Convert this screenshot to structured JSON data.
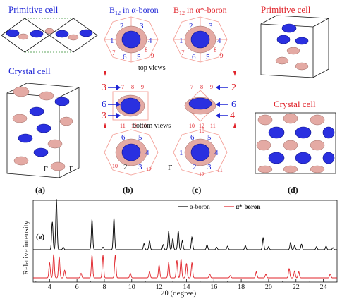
{
  "panel_a": {
    "title_primitive": "Primitive cell",
    "title_crystal": "Crystal cell",
    "gamma_left": "Γ",
    "gamma_right": "Γ",
    "label": "(a)"
  },
  "panel_b": {
    "title_prefix": "B",
    "title_sub": "12",
    "title_suffix": " in α-boron",
    "top_numbers": [
      "1",
      "2",
      "3",
      "4",
      "5",
      "6",
      "7",
      "8",
      "9"
    ],
    "side_numbers": [
      "7",
      "8",
      "9",
      "11",
      "12",
      "10"
    ],
    "bottom_numbers": [
      "6",
      "5",
      "4",
      "2",
      "3",
      "10",
      "12"
    ],
    "label": "(b)"
  },
  "panel_c": {
    "title_prefix": "B",
    "title_sub": "12",
    "title_suffix": " in α*-boron",
    "top_numbers": [
      "2",
      "3",
      "1",
      "4",
      "6",
      "5",
      "7",
      "8",
      "9"
    ],
    "side_numbers": [
      "7",
      "8",
      "9",
      "10",
      "12",
      "11"
    ],
    "bottom_numbers": [
      "6",
      "5",
      "4",
      "1",
      "2",
      "3",
      "10",
      "12",
      "11"
    ],
    "label": "(c)"
  },
  "middle": {
    "top_views": "top views",
    "bottom_views": "bottom views",
    "left_markers": [
      "3",
      "6",
      "3"
    ],
    "right_markers": [
      "2",
      "6",
      "4"
    ],
    "gamma": "Γ"
  },
  "panel_d": {
    "title_primitive": "Primitive cell",
    "title_crystal": "Crystal cell",
    "label": "(d)"
  },
  "panel_e": {
    "label": "(e)",
    "ylabel": "Relative intensity",
    "xlabel": "2θ (degree)",
    "legend": [
      "α-boron",
      "α*-boron"
    ]
  },
  "colors": {
    "blue_text": "#1d24d6",
    "red_text": "#e0232a",
    "boron_blue": "#2a30e0",
    "boron_pink": "#e4aaa4"
  },
  "chart_data": {
    "type": "line",
    "xlabel": "2θ (degree)",
    "ylabel": "Relative intensity",
    "xlim": [
      2.8,
      25
    ],
    "xticks": [
      4,
      6,
      8,
      10,
      12,
      14,
      16,
      18,
      20,
      22,
      24
    ],
    "legend_position": "top-center",
    "series": [
      {
        "name": "α-boron",
        "color": "#000000",
        "peaks": [
          {
            "x": 4.2,
            "y": 0.55
          },
          {
            "x": 4.5,
            "y": 1.0
          },
          {
            "x": 5.0,
            "y": 0.05
          },
          {
            "x": 7.1,
            "y": 0.6
          },
          {
            "x": 7.9,
            "y": 0.05
          },
          {
            "x": 8.7,
            "y": 0.63
          },
          {
            "x": 10.9,
            "y": 0.12
          },
          {
            "x": 11.3,
            "y": 0.17
          },
          {
            "x": 12.3,
            "y": 0.1
          },
          {
            "x": 12.7,
            "y": 0.36
          },
          {
            "x": 13.0,
            "y": 0.22
          },
          {
            "x": 13.4,
            "y": 0.37
          },
          {
            "x": 13.7,
            "y": 0.18
          },
          {
            "x": 14.4,
            "y": 0.25
          },
          {
            "x": 15.5,
            "y": 0.1
          },
          {
            "x": 16.2,
            "y": 0.05
          },
          {
            "x": 17.0,
            "y": 0.07
          },
          {
            "x": 18.3,
            "y": 0.08
          },
          {
            "x": 19.6,
            "y": 0.23
          },
          {
            "x": 20.0,
            "y": 0.06
          },
          {
            "x": 21.6,
            "y": 0.14
          },
          {
            "x": 21.9,
            "y": 0.08
          },
          {
            "x": 22.4,
            "y": 0.11
          },
          {
            "x": 23.5,
            "y": 0.06
          },
          {
            "x": 24.2,
            "y": 0.07
          },
          {
            "x": 24.7,
            "y": 0.04
          }
        ]
      },
      {
        "name": "α*-boron",
        "color": "#e0232a",
        "peaks": [
          {
            "x": 4.0,
            "y": 0.2
          },
          {
            "x": 4.3,
            "y": 0.31
          },
          {
            "x": 4.7,
            "y": 0.28
          },
          {
            "x": 5.1,
            "y": 0.1
          },
          {
            "x": 6.3,
            "y": 0.06
          },
          {
            "x": 7.1,
            "y": 0.3
          },
          {
            "x": 7.9,
            "y": 0.3
          },
          {
            "x": 8.8,
            "y": 0.3
          },
          {
            "x": 9.9,
            "y": 0.06
          },
          {
            "x": 11.3,
            "y": 0.08
          },
          {
            "x": 12.0,
            "y": 0.17
          },
          {
            "x": 12.7,
            "y": 0.2
          },
          {
            "x": 13.3,
            "y": 0.23
          },
          {
            "x": 13.6,
            "y": 0.25
          },
          {
            "x": 14.0,
            "y": 0.19
          },
          {
            "x": 14.4,
            "y": 0.2
          },
          {
            "x": 15.7,
            "y": 0.05
          },
          {
            "x": 17.2,
            "y": 0.03
          },
          {
            "x": 19.1,
            "y": 0.08
          },
          {
            "x": 19.8,
            "y": 0.05
          },
          {
            "x": 21.5,
            "y": 0.12
          },
          {
            "x": 21.9,
            "y": 0.09
          },
          {
            "x": 22.2,
            "y": 0.08
          },
          {
            "x": 24.5,
            "y": 0.05
          }
        ]
      }
    ]
  }
}
